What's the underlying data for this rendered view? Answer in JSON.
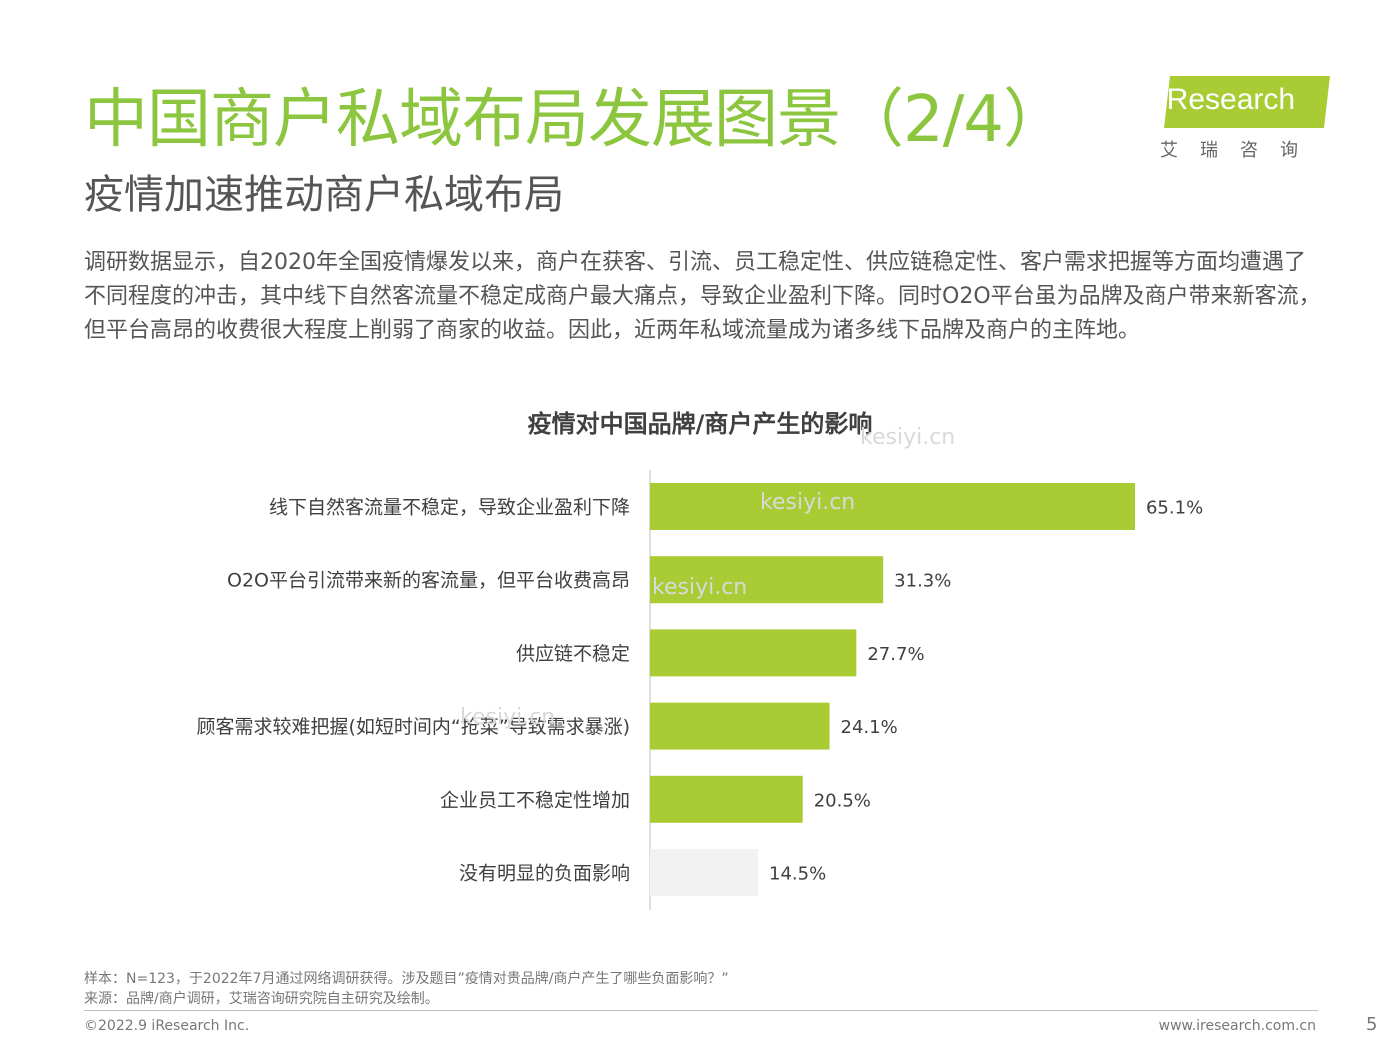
{
  "header": {
    "title": "中国商户私域布局发展图景（2/4）",
    "subtitle": "疫情加速推动商户私域布局",
    "intro": "调研数据显示，自2020年全国疫情爆发以来，商户在获客、引流、员工稳定性、供应链稳定性、客户需求把握等方面均遭遇了不同程度的冲击，其中线下自然客流量不稳定成商户最大痛点，导致企业盈利下降。同时O2O平台虽为品牌及商户带来新客流，但平台高昂的收费很大程度上削弱了商家的收益。因此，近两年私域流量成为诸多线下品牌及商户的主阵地。"
  },
  "logo": {
    "name": "iResearch",
    "sub": "艾瑞咨询",
    "color": "#8cc63f"
  },
  "chart_data": {
    "type": "bar",
    "orientation": "horizontal",
    "title": "疫情对中国品牌/商户产生的影响",
    "categories": [
      "线下自然客流量不稳定，导致企业盈利下降",
      "O2O平台引流带来新的客流量，但平台收费高昂",
      "供应链不稳定",
      "顾客需求较难把握(如短时间内“抢菜”导致需求暴涨)",
      "企业员工不稳定性增加",
      "没有明显的负面影响"
    ],
    "values": [
      65.1,
      31.3,
      27.7,
      24.1,
      20.5,
      14.5
    ],
    "value_labels": [
      "65.1%",
      "31.3%",
      "27.7%",
      "24.1%",
      "20.5%",
      "14.5%"
    ],
    "unit": "%",
    "xlim": [
      0,
      100
    ],
    "colors": [
      "#a9cc35",
      "#a9cc35",
      "#a9cc35",
      "#a9cc35",
      "#a9cc35",
      "#f2f2f2"
    ]
  },
  "footer": {
    "note1": "样本：N=123，于2022年7月通过网络调研获得。涉及题目”疫情对贵品牌/商户产生了哪些负面影响？”",
    "note2": "来源：品牌/商户调研，艾瑞咨询研究院自主研究及绘制。",
    "copyright": "©2022.9 iResearch Inc.",
    "website": "www.iresearch.com.cn",
    "page": "5"
  },
  "watermark": "kesiyi.cn"
}
